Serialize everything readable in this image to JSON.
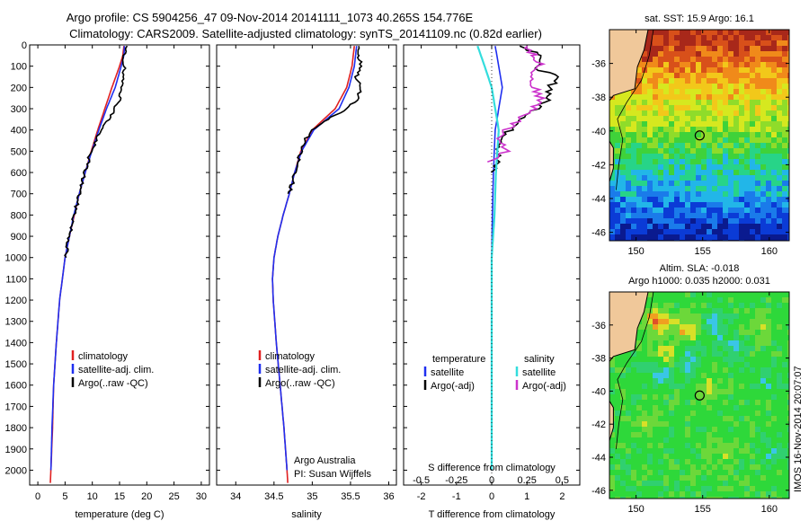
{
  "header": {
    "line1": "Argo profile: CS 5904256_47 09-Nov-2014 20141111_1073 40.265S 154.776E",
    "line2": "Climatology: CARS2009. Satellite-adjusted climatology: synTS_20141109.nc (0.82d earlier)"
  },
  "colors": {
    "climatology": "#e02020",
    "satellite": "#1f2ff0",
    "argo": "#000000",
    "sat_salinity": "#33dddd",
    "argo_salinity": "#cc33cc"
  },
  "chart_data": [
    {
      "type": "line",
      "name": "temperature",
      "xlabel": "temperature (deg C)",
      "xlim": [
        -1.5,
        31.5
      ],
      "xticks": [
        "0",
        "5",
        "10",
        "15",
        "20",
        "25",
        "30"
      ],
      "ylim": [
        0,
        2070
      ],
      "yticks": [
        "0",
        "100",
        "200",
        "300",
        "400",
        "500",
        "600",
        "700",
        "800",
        "900",
        "1000",
        "1100",
        "1200",
        "1300",
        "1400",
        "1500",
        "1600",
        "1700",
        "1800",
        "1900",
        "2000"
      ],
      "legend": [
        "climatology",
        "satellite-adj. clim.",
        "Argo(..raw -QC)"
      ],
      "series": [
        {
          "name": "climatology",
          "depth": [
            5,
            50,
            100,
            200,
            300,
            400,
            500,
            600,
            700,
            800,
            900,
            1000,
            1200,
            1400,
            1600,
            1800,
            2000,
            2060
          ],
          "values": [
            15.8,
            15.6,
            15.0,
            13.6,
            12.3,
            11.0,
            9.8,
            8.7,
            7.6,
            6.7,
            5.8,
            5.0,
            4.0,
            3.4,
            2.9,
            2.7,
            2.4,
            2.3
          ]
        },
        {
          "name": "satellite-adj. clim.",
          "depth": [
            5,
            50,
            100,
            200,
            300,
            400,
            500,
            600,
            700,
            800,
            900,
            1000,
            1200,
            1400,
            1600,
            1800,
            2000
          ],
          "values": [
            15.9,
            15.8,
            15.3,
            14.2,
            12.6,
            11.2,
            9.9,
            8.7,
            7.6,
            6.6,
            5.8,
            5.0,
            4.0,
            3.4,
            2.9,
            2.6,
            2.4
          ]
        },
        {
          "name": "Argo(..raw -QC)",
          "depth": [
            5,
            30,
            60,
            100,
            150,
            200,
            250,
            300,
            350,
            400,
            450,
            500,
            600,
            700,
            800,
            900,
            1000
          ],
          "values": [
            16.1,
            16.0,
            15.7,
            15.9,
            15.4,
            15.6,
            15.1,
            14.2,
            13.0,
            11.6,
            10.6,
            9.8,
            8.6,
            7.6,
            6.7,
            5.8,
            5.0
          ]
        }
      ]
    },
    {
      "type": "line",
      "name": "salinity",
      "xlabel": "salinity",
      "xlim": [
        33.75,
        36.1
      ],
      "xticks": [
        "34",
        "34.5",
        "35",
        "35.5",
        "36"
      ],
      "ylim": [
        0,
        2070
      ],
      "legend": [
        "climatology",
        "satellite-adj. clim.",
        "Argo(..raw -QC)"
      ],
      "annotation": [
        "Argo Australia",
        "PI: Susan Wijffels"
      ],
      "series": [
        {
          "name": "climatology",
          "depth": [
            5,
            100,
            200,
            300,
            400,
            500,
            600,
            700,
            800,
            900,
            1000,
            1100,
            1200,
            1400,
            1600,
            1800,
            2000,
            2060
          ],
          "values": [
            35.55,
            35.52,
            35.45,
            35.3,
            35.0,
            34.85,
            34.77,
            34.7,
            34.62,
            34.55,
            34.5,
            34.48,
            34.49,
            34.53,
            34.58,
            34.63,
            34.67,
            34.68
          ]
        },
        {
          "name": "satellite-adj. clim.",
          "depth": [
            5,
            100,
            200,
            300,
            400,
            500,
            600,
            700,
            800,
            900,
            1000,
            1100,
            1200,
            1400,
            1600,
            1800,
            2000
          ],
          "values": [
            35.58,
            35.55,
            35.48,
            35.35,
            35.02,
            34.86,
            34.77,
            34.7,
            34.62,
            34.55,
            34.5,
            34.48,
            34.49,
            34.53,
            34.58,
            34.63,
            34.67
          ]
        },
        {
          "name": "Argo(..raw -QC)",
          "depth": [
            5,
            50,
            100,
            150,
            200,
            250,
            300,
            350,
            400,
            450,
            500,
            600,
            700
          ],
          "values": [
            35.62,
            35.6,
            35.65,
            35.58,
            35.63,
            35.6,
            35.45,
            35.2,
            35.0,
            34.9,
            34.85,
            34.78,
            34.7
          ]
        }
      ]
    },
    {
      "type": "line",
      "name": "difference",
      "xlabel": "T difference from climatology",
      "top_xlabel": "S difference from climatology",
      "xlim": [
        -2.5,
        2.5
      ],
      "xticks": [
        "-2",
        "-1",
        "0",
        "1",
        "2"
      ],
      "top_xticks": [
        "-0.5",
        "-0.25",
        "0",
        "0.25",
        "0.5"
      ],
      "ylim": [
        0,
        2070
      ],
      "legend_temperature": [
        "temperature",
        "satellite",
        "Argo(-adj)"
      ],
      "legend_salinity": [
        "salinity",
        "satellite",
        "Argo(-adj)"
      ],
      "series": [
        {
          "name": "temperature satellite",
          "depth": [
            5,
            100,
            200,
            400,
            600,
            800,
            1000,
            1400,
            2000
          ],
          "values": [
            0.1,
            0.2,
            0.3,
            0.1,
            0.05,
            0.02,
            0.0,
            0.0,
            0.0
          ]
        },
        {
          "name": "temperature Argo(-adj)",
          "depth": [
            5,
            50,
            100,
            150,
            200,
            250,
            300,
            400,
            500,
            600
          ],
          "values": [
            0.8,
            1.5,
            1.2,
            1.8,
            1.7,
            1.6,
            1.3,
            0.5,
            0.2,
            0.05
          ]
        },
        {
          "name": "salinity satellite",
          "depth": [
            5,
            100,
            200,
            400,
            600,
            800,
            1000,
            1300,
            2000
          ],
          "values": [
            -0.1,
            -0.05,
            0.0,
            0.05,
            0.03,
            0.02,
            0.0,
            0.0,
            0.0
          ]
        },
        {
          "name": "salinity Argo(-adj)",
          "depth": [
            5,
            50,
            100,
            150,
            200,
            250,
            300,
            350,
            400,
            450,
            500,
            550
          ],
          "values": [
            0.25,
            0.3,
            0.35,
            0.28,
            0.3,
            0.35,
            0.3,
            0.2,
            0.1,
            0.05,
            0.1,
            0.0
          ]
        }
      ]
    },
    {
      "type": "heatmap",
      "name": "sst-map",
      "title": "sat. SST: 15.9 Argo: 16.1",
      "xticks": [
        "150",
        "155",
        "160"
      ],
      "yticks": [
        "-36",
        "-38",
        "-40",
        "-42",
        "-44",
        "-46"
      ],
      "xlim": [
        148,
        161.5
      ],
      "ylim": [
        -46.5,
        -34
      ],
      "marker": {
        "lon": 154.776,
        "lat": -40.265
      }
    },
    {
      "type": "heatmap",
      "name": "sla-map",
      "title1": "Altim. SLA: -0.018",
      "title2": "Argo h1000: 0.035 h2000: 0.031",
      "xticks": [
        "150",
        "155",
        "160"
      ],
      "yticks": [
        "-36",
        "-38",
        "-40",
        "-42",
        "-44",
        "-46"
      ],
      "xlim": [
        148,
        161.5
      ],
      "ylim": [
        -46.5,
        -34
      ],
      "marker": {
        "lon": 154.776,
        "lat": -40.265
      }
    }
  ],
  "footer_stamp": "IMOS 16-Nov-2014 20:07:07"
}
